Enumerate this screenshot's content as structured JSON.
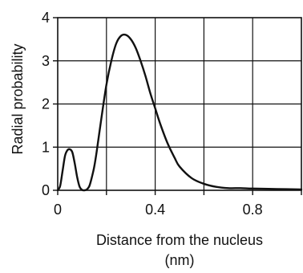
{
  "chart_data": {
    "type": "line",
    "xlabel_line1": "Distance from the nucleus",
    "xlabel_line2": "(nm)",
    "ylabel": "Radial probability",
    "xlim": [
      0,
      1.0
    ],
    "ylim": [
      0,
      4
    ],
    "x_ticks": [
      0,
      0.4,
      0.8
    ],
    "x_tick_labels": [
      "0",
      "0.4",
      "0.8"
    ],
    "x_grid": [
      0,
      0.2,
      0.4,
      0.6,
      0.8,
      1.0
    ],
    "y_ticks": [
      0,
      1,
      2,
      3,
      4
    ],
    "y_tick_labels": [
      "0",
      "1",
      "2",
      "3",
      "4"
    ],
    "grid": true,
    "line_color": "#111111",
    "series": [
      {
        "x": [
          0,
          0.01,
          0.02,
          0.03,
          0.04,
          0.05,
          0.06,
          0.07,
          0.08,
          0.09,
          0.1,
          0.11,
          0.12,
          0.13,
          0.14,
          0.15,
          0.16,
          0.18,
          0.2,
          0.22,
          0.24,
          0.26,
          0.28,
          0.3,
          0.32,
          0.34,
          0.36,
          0.38,
          0.4,
          0.42,
          0.45,
          0.48,
          0.5,
          0.55,
          0.6,
          0.65,
          0.7,
          0.75,
          0.8,
          0.9,
          1.0
        ],
        "y": [
          0,
          0.1,
          0.45,
          0.8,
          0.93,
          0.95,
          0.88,
          0.62,
          0.3,
          0.08,
          0.01,
          0.0,
          0.02,
          0.1,
          0.3,
          0.55,
          0.9,
          1.7,
          2.45,
          3.0,
          3.4,
          3.58,
          3.6,
          3.5,
          3.3,
          3.0,
          2.65,
          2.25,
          1.9,
          1.55,
          1.1,
          0.75,
          0.55,
          0.28,
          0.15,
          0.08,
          0.05,
          0.05,
          0.04,
          0.03,
          0.02
        ]
      }
    ]
  }
}
